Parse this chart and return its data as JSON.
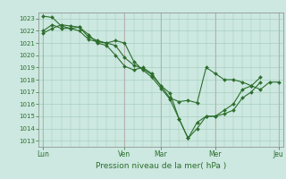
{
  "title": "",
  "xlabel": "Pression niveau de la mer( hPa )",
  "ylim": [
    1012.5,
    1023.5
  ],
  "yticks": [
    1013,
    1014,
    1015,
    1016,
    1017,
    1018,
    1019,
    1020,
    1021,
    1022,
    1023
  ],
  "bg_color": "#cce8e0",
  "line_color": "#2d6e2d",
  "xtick_labels": [
    "Lun",
    "Ven",
    "Mar",
    "Mer",
    "Jeu"
  ],
  "xtick_positions": [
    0,
    9,
    13,
    19,
    26
  ],
  "vline_positions": [
    0,
    9,
    13,
    19,
    26
  ],
  "series": [
    [
      1021.8,
      1022.2,
      1022.5,
      1022.4,
      1022.3,
      1021.7,
      1021.0,
      1020.8,
      1020.0,
      1019.1,
      1018.8,
      1019.0,
      1018.5,
      1017.5,
      1016.5,
      1016.2,
      1016.3,
      1016.1,
      1019.0,
      1018.5,
      1018.0,
      1018.0,
      1017.8,
      1017.5,
      1017.2,
      1017.8,
      1017.8
    ],
    [
      1023.2,
      1023.1,
      1022.4,
      1022.2,
      1022.3,
      1021.5,
      1021.2,
      1021.0,
      1021.2,
      1021.0,
      1019.5,
      1018.8,
      1018.2,
      1017.3,
      1016.4,
      1014.8,
      1013.2,
      1014.0,
      1015.0,
      1015.0,
      1015.2,
      1015.5,
      1016.5,
      1017.0,
      1017.8
    ],
    [
      1022.0,
      1022.5,
      1022.2,
      1022.2,
      1022.0,
      1021.3,
      1021.1,
      1021.0,
      1020.8,
      1019.8,
      1019.2,
      1018.9,
      1018.4,
      1017.5,
      1016.9,
      1014.8,
      1013.2,
      1014.5,
      1015.0,
      1015.0,
      1015.5,
      1016.0,
      1017.2,
      1017.5,
      1018.2
    ]
  ],
  "series_x": [
    [
      0,
      1,
      2,
      3,
      4,
      5,
      6,
      7,
      8,
      9,
      10,
      11,
      12,
      13,
      14,
      15,
      16,
      17,
      18,
      19,
      20,
      21,
      22,
      23,
      24,
      25,
      26
    ],
    [
      0,
      1,
      2,
      3,
      4,
      5,
      6,
      7,
      8,
      9,
      10,
      11,
      12,
      13,
      14,
      15,
      16,
      17,
      18,
      19,
      20,
      21,
      22,
      23,
      24
    ],
    [
      0,
      1,
      2,
      3,
      4,
      5,
      6,
      7,
      8,
      9,
      10,
      11,
      12,
      13,
      14,
      15,
      16,
      17,
      18,
      19,
      20,
      21,
      22,
      23,
      24
    ]
  ]
}
